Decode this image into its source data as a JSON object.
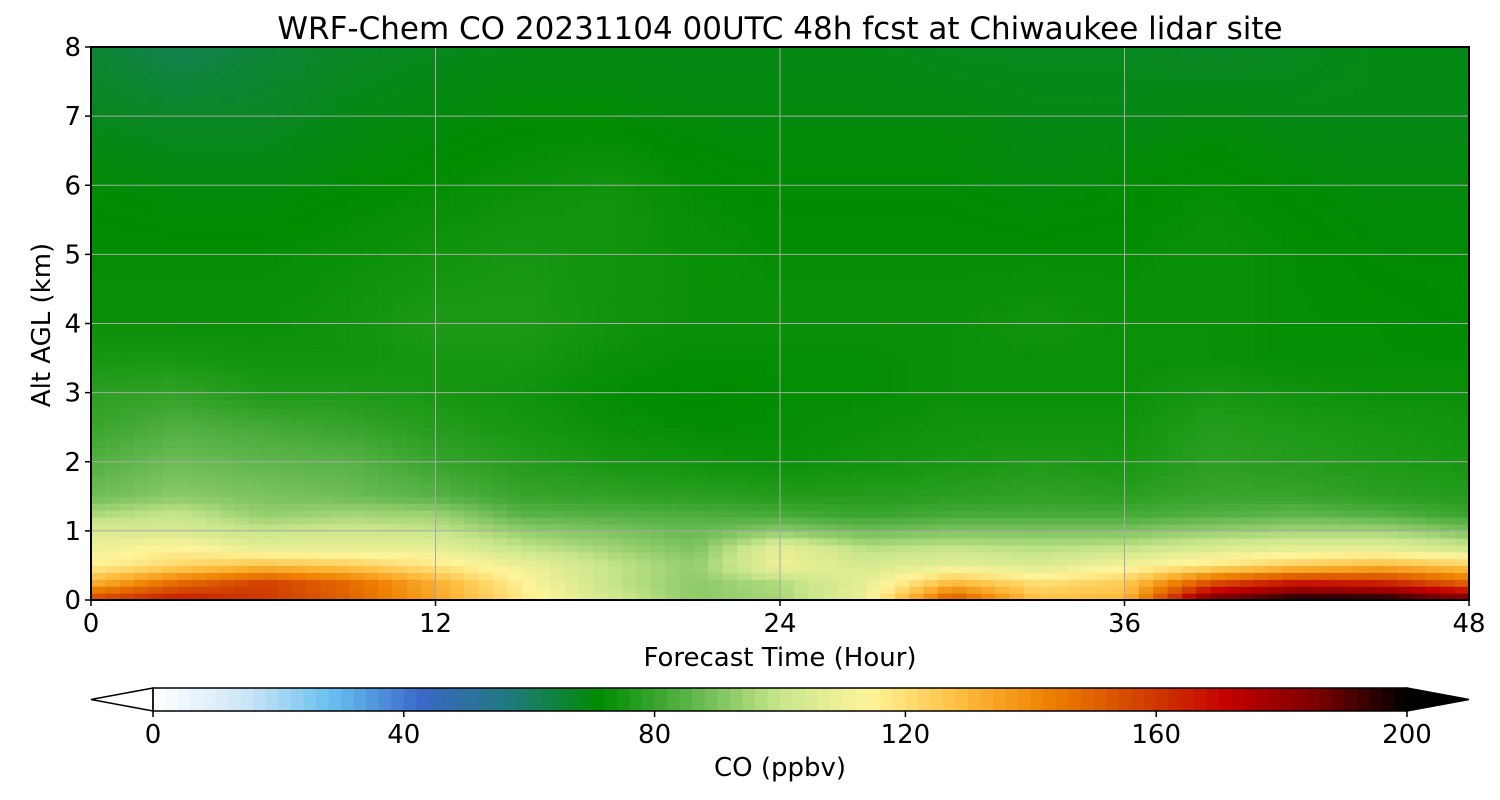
{
  "chart_data": {
    "type": "heatmap",
    "title": "WRF-Chem CO  20231104 00UTC 48h fcst at Chiwaukee lidar site",
    "xlabel": "Forecast Time (Hour)",
    "ylabel": "Alt AGL (km)",
    "xlim": [
      0,
      48
    ],
    "ylim": [
      0,
      8
    ],
    "x_ticks": [
      "0",
      "12",
      "24",
      "36",
      "48"
    ],
    "y_ticks": [
      "0",
      "1",
      "2",
      "3",
      "4",
      "5",
      "6",
      "7",
      "8"
    ],
    "grid": true,
    "colorbar": {
      "label": "CO  (ppbv)",
      "range": [
        0,
        200
      ],
      "ticks": [
        "0",
        "40",
        "80",
        "120",
        "160",
        "200"
      ],
      "extend": "both",
      "orientation": "horizontal"
    },
    "x": [
      0,
      3,
      6,
      9,
      12,
      15,
      18,
      21,
      24,
      27,
      30,
      33,
      36,
      39,
      42,
      45,
      48
    ],
    "y": [
      0,
      0.25,
      0.5,
      0.75,
      1,
      1.25,
      1.5,
      2,
      2.5,
      3,
      3.5,
      4,
      5,
      6,
      7,
      8
    ],
    "z": [
      [
        158,
        168,
        160,
        150,
        135,
        118,
        103,
        92,
        95,
        110,
        155,
        128,
        130,
        190,
        200,
        200,
        190
      ],
      [
        132,
        148,
        158,
        148,
        132,
        115,
        100,
        92,
        97,
        108,
        130,
        120,
        125,
        155,
        168,
        165,
        150
      ],
      [
        115,
        122,
        128,
        125,
        118,
        110,
        100,
        93,
        110,
        104,
        108,
        105,
        112,
        118,
        125,
        130,
        125
      ],
      [
        110,
        115,
        108,
        108,
        108,
        100,
        95,
        90,
        108,
        98,
        100,
        98,
        100,
        105,
        108,
        108,
        102
      ],
      [
        105,
        104,
        100,
        102,
        100,
        93,
        90,
        87,
        92,
        88,
        90,
        90,
        90,
        93,
        95,
        95,
        90
      ],
      [
        96,
        100,
        93,
        95,
        94,
        85,
        84,
        83,
        82,
        80,
        82,
        82,
        82,
        84,
        86,
        84,
        80
      ],
      [
        88,
        92,
        90,
        88,
        85,
        80,
        79,
        78,
        77,
        77,
        78,
        79,
        78,
        80,
        80,
        78,
        77
      ],
      [
        84,
        88,
        86,
        85,
        80,
        77,
        75,
        74,
        73,
        74,
        75,
        76,
        75,
        78,
        77,
        76,
        75
      ],
      [
        80,
        84,
        82,
        80,
        77,
        75,
        73,
        72,
        72,
        73,
        74,
        74,
        74,
        77,
        76,
        75,
        74
      ],
      [
        78,
        79,
        76,
        76,
        75,
        74,
        72,
        71,
        72,
        72,
        73,
        73,
        73,
        75,
        74,
        73,
        73
      ],
      [
        75,
        75,
        74,
        74,
        75,
        75,
        73,
        72,
        72,
        72,
        73,
        73,
        73,
        73,
        72,
        72,
        72
      ],
      [
        73,
        73,
        73,
        74,
        76,
        76,
        74,
        73,
        73,
        73,
        73,
        74,
        73,
        73,
        72,
        72,
        71
      ],
      [
        72,
        72,
        72,
        73,
        74,
        75,
        74,
        73,
        72,
        72,
        72,
        72,
        72,
        73,
        72,
        71,
        71
      ],
      [
        71,
        70,
        70,
        71,
        72,
        73,
        74,
        72,
        71,
        71,
        71,
        70,
        71,
        72,
        71,
        70,
        70
      ],
      [
        68,
        67,
        67,
        69,
        70,
        71,
        71,
        70,
        70,
        70,
        70,
        69,
        69,
        70,
        69,
        69,
        69
      ],
      [
        66,
        62,
        65,
        67,
        68,
        69,
        69,
        69,
        69,
        69,
        68,
        68,
        68,
        67,
        68,
        69,
        69
      ]
    ]
  },
  "colors": {
    "scale": [
      "#ffffff",
      "#cfe7f7",
      "#68bff0",
      "#3a68c8",
      "#1f7a7a",
      "#008c00",
      "#5db54a",
      "#c8e68c",
      "#fff49a",
      "#ffbe40",
      "#ee8000",
      "#d24400",
      "#c40000",
      "#7a0000",
      "#000000"
    ]
  }
}
